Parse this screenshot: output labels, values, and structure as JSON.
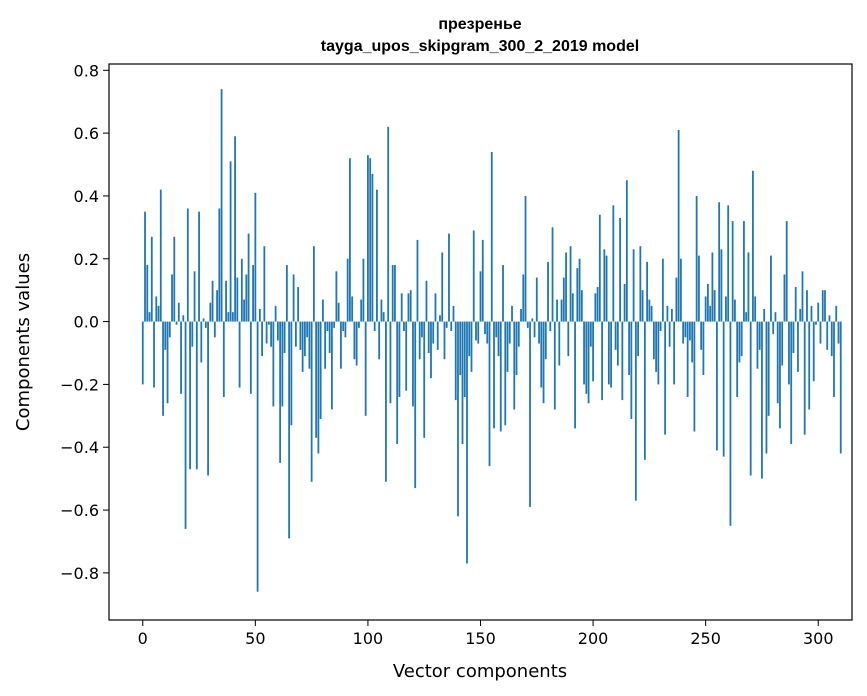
{
  "chart_data": {
    "type": "bar",
    "title_line1": "презренье",
    "title_line2": "tayga_upos_skipgram_300_2_2019 model",
    "xlabel": "Vector components",
    "ylabel": "Components values",
    "xlim": [
      -15,
      315
    ],
    "ylim": [
      -0.95,
      0.82
    ],
    "xticks": [
      0,
      50,
      100,
      150,
      200,
      250,
      300
    ],
    "xtick_labels": [
      "0",
      "50",
      "100",
      "150",
      "200",
      "250",
      "300"
    ],
    "yticks": [
      0.8,
      0.6,
      0.4,
      0.2,
      0.0,
      -0.2,
      -0.4,
      -0.6,
      -0.8
    ],
    "ytick_labels": [
      "0.8",
      "0.6",
      "0.4",
      "0.2",
      "0.0",
      "−0.2",
      "−0.4",
      "−0.6",
      "−0.8"
    ],
    "bar_color": "#1f77b4",
    "values": [
      -0.2,
      0.35,
      0.18,
      0.03,
      0.27,
      -0.21,
      0.08,
      0.05,
      0.42,
      -0.3,
      -0.09,
      -0.26,
      -0.05,
      0.15,
      0.27,
      -0.01,
      0.06,
      -0.23,
      0.02,
      -0.66,
      0.36,
      -0.47,
      -0.08,
      0.16,
      -0.47,
      0.35,
      -0.13,
      0.01,
      -0.02,
      -0.49,
      0.06,
      0.13,
      -0.05,
      0.1,
      0.36,
      0.74,
      -0.24,
      0.13,
      0.03,
      0.51,
      0.03,
      0.59,
      0.14,
      -0.21,
      0.2,
      0.07,
      0.15,
      0.28,
      -0.23,
      0.18,
      0.41,
      -0.86,
      0.04,
      -0.11,
      0.24,
      -0.07,
      -0.01,
      -0.08,
      -0.27,
      0.05,
      -0.06,
      -0.45,
      -0.27,
      -0.1,
      0.18,
      -0.69,
      -0.33,
      0.15,
      -0.08,
      0.11,
      -0.09,
      -0.16,
      -0.11,
      -0.05,
      -0.15,
      -0.51,
      0.24,
      -0.37,
      -0.42,
      -0.31,
      0.07,
      -0.15,
      -0.03,
      -0.1,
      -0.28,
      -0.02,
      0.16,
      0.06,
      -0.15,
      -0.03,
      -0.05,
      0.2,
      0.52,
      0.08,
      -0.12,
      -0.14,
      -0.02,
      0.07,
      0.2,
      -0.3,
      0.53,
      0.52,
      0.47,
      -0.03,
      0.42,
      -0.12,
      0.07,
      0.03,
      -0.51,
      0.62,
      -0.26,
      0.18,
      0.18,
      -0.39,
      -0.24,
      0.09,
      -0.03,
      -0.22,
      0.09,
      0.1,
      -0.27,
      -0.53,
      0.26,
      -0.12,
      -0.05,
      -0.37,
      0.13,
      -0.1,
      -0.18,
      -0.07,
      0.09,
      -0.09,
      0.02,
      0.22,
      -0.12,
      -0.02,
      0.28,
      -0.03,
      0.05,
      -0.25,
      -0.62,
      -0.17,
      -0.39,
      -0.24,
      -0.77,
      -0.11,
      -0.16,
      0.29,
      -0.06,
      -0.07,
      0.16,
      0.26,
      -0.04,
      -0.07,
      -0.46,
      0.54,
      -0.34,
      -0.05,
      -0.11,
      -0.35,
      0.18,
      -0.33,
      -0.16,
      -0.07,
      0.05,
      -0.28,
      -0.17,
      -0.08,
      0.04,
      0.15,
      0.4,
      -0.02,
      -0.59,
      0.01,
      -0.05,
      0.14,
      -0.07,
      -0.21,
      -0.26,
      -0.12,
      0.19,
      -0.03,
      0.3,
      -0.28,
      0.07,
      -0.14,
      0.07,
      0.14,
      0.22,
      -0.11,
      0.24,
      0.09,
      -0.34,
      0.17,
      0.2,
      0.1,
      -0.2,
      -0.23,
      -0.26,
      -0.08,
      -0.19,
      0.09,
      0.11,
      0.34,
      -0.25,
      0.23,
      0.21,
      -0.2,
      -0.21,
      0.37,
      -0.09,
      -0.14,
      0.33,
      -0.25,
      0.12,
      0.45,
      -0.17,
      -0.31,
      0.23,
      -0.57,
      -0.11,
      0.24,
      0.1,
      -0.44,
      0.19,
      0.07,
      0.05,
      -0.12,
      -0.16,
      -0.2,
      -0.03,
      0.2,
      -0.36,
      0.05,
      -0.08,
      0.04,
      -0.2,
      0.14,
      0.61,
      0.2,
      -0.07,
      -0.05,
      -0.24,
      -0.06,
      -0.13,
      -0.35,
      0.4,
      0.21,
      -0.09,
      -0.17,
      0.08,
      0.12,
      0.05,
      0.22,
      0.1,
      -0.41,
      0.38,
      0.23,
      -0.43,
      0.08,
      0.37,
      -0.65,
      0.32,
      0.07,
      -0.24,
      -0.13,
      -0.11,
      0.32,
      0.03,
      0.22,
      -0.49,
      0.48,
      0.08,
      -0.15,
      -0.09,
      -0.5,
      0.04,
      -0.42,
      -0.3,
      0.21,
      -0.04,
      0.03,
      -0.26,
      -0.34,
      -0.14,
      0.15,
      0.32,
      -0.2,
      -0.39,
      -0.1,
      0.11,
      -0.16,
      0.04,
      0.16,
      -0.36,
      0.1,
      -0.28,
      0.05,
      -0.19,
      -0.01,
      0.06,
      -0.07,
      0.1,
      0.1,
      -0.09,
      0.02,
      -0.11,
      -0.24,
      0.05,
      -0.07,
      -0.42
    ]
  }
}
